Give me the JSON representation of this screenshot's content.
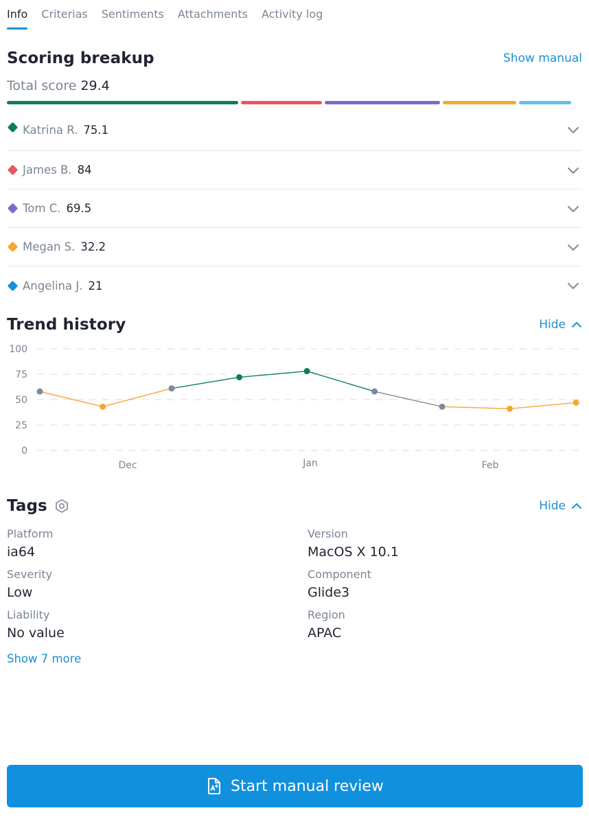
{
  "tabs": [
    {
      "label": "Info",
      "active": true
    },
    {
      "label": "Criterias"
    },
    {
      "label": "Sentiments"
    },
    {
      "label": "Attachments"
    },
    {
      "label": "Activity log"
    }
  ],
  "scoring": {
    "title": "Scoring breakup",
    "show_manual": "Show manual",
    "total_label": "Total score",
    "total_value": "29.4",
    "bar_segments": [
      {
        "color": "#0d7f50",
        "share": 0.41
      },
      {
        "color": "#e8575f",
        "share": 0.143
      },
      {
        "color": "#7b6bd1",
        "share": 0.205
      },
      {
        "color": "#f7a731",
        "share": 0.13
      },
      {
        "color": "#64c0ee",
        "share": 0.092
      }
    ],
    "people": [
      {
        "name": "Katrina R.",
        "score": "75.1",
        "color": "#0d7f50"
      },
      {
        "name": "James B.",
        "score": "84",
        "color": "#e8575f"
      },
      {
        "name": "Tom C.",
        "score": "69.5",
        "color": "#7b6bd1"
      },
      {
        "name": "Megan S.",
        "score": "32.2",
        "color": "#f7a731"
      },
      {
        "name": "Angelina J.",
        "score": "21",
        "color": "#1a8fd6"
      }
    ]
  },
  "trend": {
    "title": "Trend history",
    "toggle": "Hide"
  },
  "chart_data": {
    "type": "line",
    "ylim": [
      0,
      100
    ],
    "yticks": [
      "100",
      "75",
      "50",
      "25",
      "0"
    ],
    "xticks": [
      {
        "label": "Dec",
        "x": 1.3
      },
      {
        "label": "Jan",
        "x": 4
      },
      {
        "label": "Feb",
        "x": 6.66
      }
    ],
    "xlim": [
      0,
      8
    ],
    "points": [
      {
        "x": 0,
        "y": 58,
        "color": "#7d8a9c"
      },
      {
        "x": 0.93,
        "y": 43,
        "color": "#f7a731"
      },
      {
        "x": 1.95,
        "y": 61,
        "color": "#7d8a9c"
      },
      {
        "x": 2.95,
        "y": 72,
        "color": "#0d7f50"
      },
      {
        "x": 3.95,
        "y": 78,
        "color": "#0d7f50"
      },
      {
        "x": 4.95,
        "y": 58,
        "color": "#7d8a9c"
      },
      {
        "x": 5.95,
        "y": 43,
        "color": "#7d8a9c"
      },
      {
        "x": 6.95,
        "y": 41,
        "color": "#f7a731"
      },
      {
        "x": 7.93,
        "y": 47,
        "color": "#f7a731"
      }
    ],
    "grid": true
  },
  "tags": {
    "title": "Tags",
    "toggle": "Hide",
    "items": [
      {
        "label": "Platform",
        "value": "ia64"
      },
      {
        "label": "Version",
        "value": "MacOS X 10.1"
      },
      {
        "label": "Severity",
        "value": "Low"
      },
      {
        "label": "Component",
        "value": "Glide3"
      },
      {
        "label": "Liability",
        "value": "No value"
      },
      {
        "label": "Region",
        "value": "APAC"
      }
    ],
    "show_more": "Show 7 more"
  },
  "cta": {
    "label": "Start manual review"
  }
}
